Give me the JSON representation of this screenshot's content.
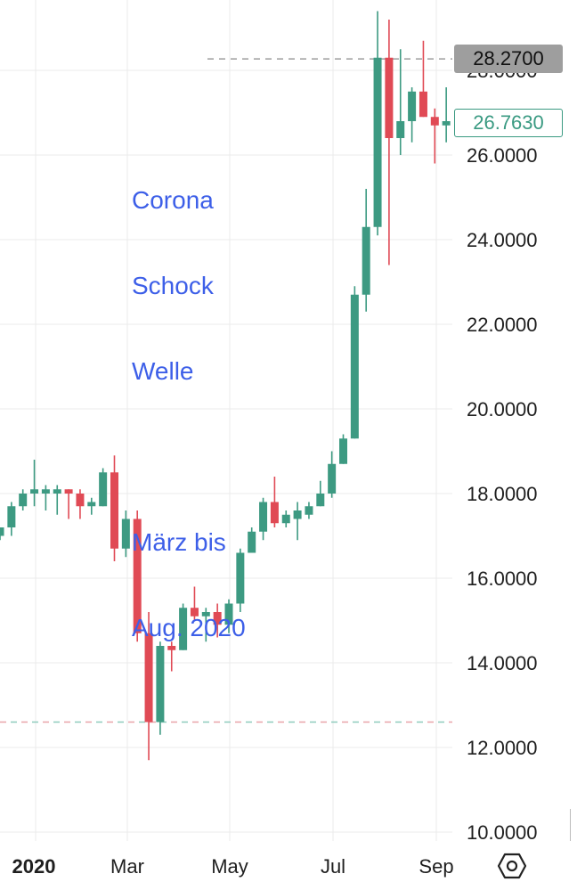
{
  "chart_data": {
    "type": "candlestick",
    "x_labels": [
      "2020",
      "Mar",
      "May",
      "Jul",
      "Sep"
    ],
    "y_ticks": [
      "10.0000",
      "12.0000",
      "14.0000",
      "16.0000",
      "18.0000",
      "20.0000",
      "22.0000",
      "24.0000",
      "26.0000",
      "28.0000"
    ],
    "ylim": [
      10,
      29.4
    ],
    "grid": true,
    "colors": {
      "up": "#3d9a82",
      "down": "#e04a55",
      "annotation": "#3d5fe8",
      "grid": "#ebebeb"
    },
    "candles": [
      {
        "o": 17.0,
        "h": 17.2,
        "l": 16.9,
        "c": 17.2
      },
      {
        "o": 17.2,
        "h": 17.8,
        "l": 17.0,
        "c": 17.7
      },
      {
        "o": 17.7,
        "h": 18.1,
        "l": 17.6,
        "c": 18.0
      },
      {
        "o": 18.0,
        "h": 18.8,
        "l": 17.7,
        "c": 18.1
      },
      {
        "o": 18.0,
        "h": 18.2,
        "l": 17.6,
        "c": 18.1
      },
      {
        "o": 18.0,
        "h": 18.2,
        "l": 17.5,
        "c": 18.1
      },
      {
        "o": 18.1,
        "h": 18.1,
        "l": 17.4,
        "c": 18.0
      },
      {
        "o": 18.0,
        "h": 18.1,
        "l": 17.4,
        "c": 17.7
      },
      {
        "o": 17.7,
        "h": 17.9,
        "l": 17.5,
        "c": 17.8
      },
      {
        "o": 17.7,
        "h": 18.6,
        "l": 17.7,
        "c": 18.5
      },
      {
        "o": 18.5,
        "h": 18.9,
        "l": 16.4,
        "c": 16.7
      },
      {
        "o": 16.7,
        "h": 17.6,
        "l": 16.5,
        "c": 17.4
      },
      {
        "o": 17.4,
        "h": 17.6,
        "l": 14.5,
        "c": 14.7
      },
      {
        "o": 14.7,
        "h": 15.2,
        "l": 11.7,
        "c": 12.6
      },
      {
        "o": 12.6,
        "h": 14.5,
        "l": 12.3,
        "c": 14.4
      },
      {
        "o": 14.4,
        "h": 14.5,
        "l": 13.8,
        "c": 14.3
      },
      {
        "o": 14.3,
        "h": 15.4,
        "l": 14.3,
        "c": 15.3
      },
      {
        "o": 15.3,
        "h": 15.8,
        "l": 15.0,
        "c": 15.1
      },
      {
        "o": 15.1,
        "h": 15.3,
        "l": 14.5,
        "c": 15.2
      },
      {
        "o": 15.2,
        "h": 15.4,
        "l": 14.6,
        "c": 14.9
      },
      {
        "o": 14.9,
        "h": 15.5,
        "l": 14.7,
        "c": 15.4
      },
      {
        "o": 15.4,
        "h": 16.7,
        "l": 15.2,
        "c": 16.6
      },
      {
        "o": 16.6,
        "h": 17.2,
        "l": 16.6,
        "c": 17.1
      },
      {
        "o": 17.1,
        "h": 17.9,
        "l": 16.9,
        "c": 17.8
      },
      {
        "o": 17.8,
        "h": 18.4,
        "l": 17.2,
        "c": 17.3
      },
      {
        "o": 17.3,
        "h": 17.6,
        "l": 17.2,
        "c": 17.5
      },
      {
        "o": 17.4,
        "h": 17.8,
        "l": 16.9,
        "c": 17.6
      },
      {
        "o": 17.5,
        "h": 17.8,
        "l": 17.4,
        "c": 17.7
      },
      {
        "o": 17.7,
        "h": 18.3,
        "l": 17.7,
        "c": 18.0
      },
      {
        "o": 18.0,
        "h": 19.0,
        "l": 17.9,
        "c": 18.7
      },
      {
        "o": 18.7,
        "h": 19.4,
        "l": 18.7,
        "c": 19.3
      },
      {
        "o": 19.3,
        "h": 22.9,
        "l": 19.3,
        "c": 22.7
      },
      {
        "o": 22.7,
        "h": 25.2,
        "l": 22.3,
        "c": 24.3
      },
      {
        "o": 24.3,
        "h": 29.4,
        "l": 24.1,
        "c": 28.3
      },
      {
        "o": 28.3,
        "h": 29.2,
        "l": 23.4,
        "c": 26.4
      },
      {
        "o": 26.4,
        "h": 28.5,
        "l": 26.0,
        "c": 26.8
      },
      {
        "o": 26.8,
        "h": 27.6,
        "l": 26.3,
        "c": 27.5
      },
      {
        "o": 27.5,
        "h": 28.7,
        "l": 26.9,
        "c": 26.9
      },
      {
        "o": 26.9,
        "h": 27.1,
        "l": 25.8,
        "c": 26.7
      },
      {
        "o": 26.7,
        "h": 27.6,
        "l": 26.3,
        "c": 26.8
      }
    ],
    "reference_lines": [
      {
        "value": 28.27,
        "label": "28.2700"
      },
      {
        "value": 26.763,
        "label": "26.7630"
      },
      {
        "value": 12.6
      }
    ],
    "annotation": [
      "Corona",
      "Schock",
      "Welle",
      "",
      "März bis",
      "Aug. 2020"
    ]
  },
  "toolbar": {
    "settings_icon": "settings-hexagon-icon"
  }
}
